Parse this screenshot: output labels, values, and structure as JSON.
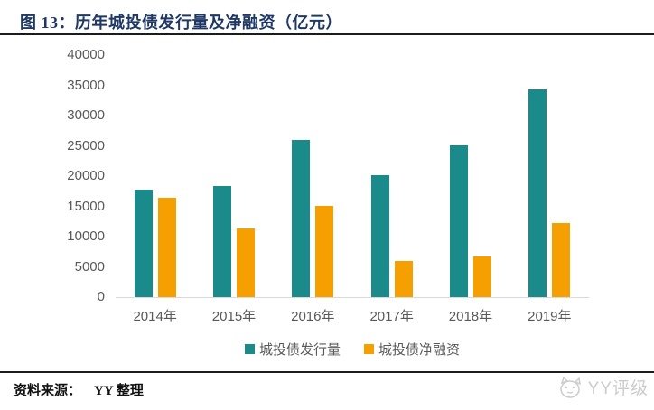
{
  "header": {
    "title": "图 13：历年城投债发行量及净融资（亿元）"
  },
  "footer": {
    "source_label": "资料来源：",
    "source_text": "YY 整理",
    "watermark_text": "YY评级"
  },
  "colors": {
    "title_navy": "#1f3864",
    "issuance_teal": "#1b8a8a",
    "net_orange": "#f5a000",
    "axis_text_gray": "#595959",
    "baseline_gray": "#d9d9d9",
    "rule_black": "#1c1c1c",
    "watermark_gray": "#cccccc"
  },
  "chart_data": {
    "type": "bar",
    "title": "历年城投债发行量及净融资（亿元）",
    "categories": [
      "2014年",
      "2015年",
      "2016年",
      "2017年",
      "2018年",
      "2019年"
    ],
    "series": [
      {
        "name": "城投债发行量",
        "color": "#1b8a8a",
        "values": [
          17700,
          18400,
          25900,
          20100,
          25100,
          34300
        ]
      },
      {
        "name": "城投债净融资",
        "color": "#f5a000",
        "values": [
          16400,
          11400,
          15100,
          5900,
          6700,
          12200
        ]
      }
    ],
    "xlabel": "",
    "ylabel": "",
    "ylim": [
      0,
      40000
    ],
    "ytick_step": 5000,
    "grid": false,
    "legend_position": "bottom"
  }
}
